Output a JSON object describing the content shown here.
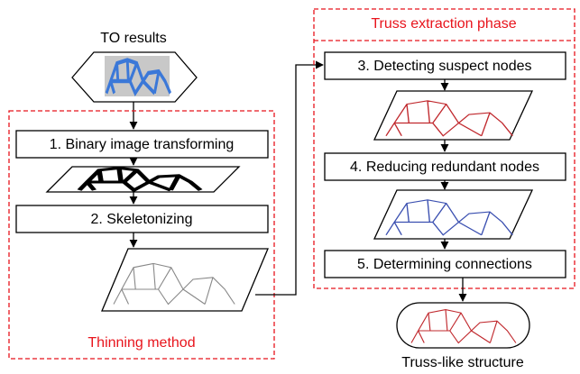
{
  "input": {
    "label": "TO results"
  },
  "thinning": {
    "label": "Thinning method",
    "steps": [
      "1. Binary image transforming",
      "2. Skeletonizing"
    ]
  },
  "truss_extraction": {
    "label": "Truss extraction phase",
    "steps": [
      "3. Detecting suspect nodes",
      "4. Reducing redundant nodes",
      "5. Determining connections"
    ]
  },
  "output": {
    "label": "Truss-like structure"
  }
}
